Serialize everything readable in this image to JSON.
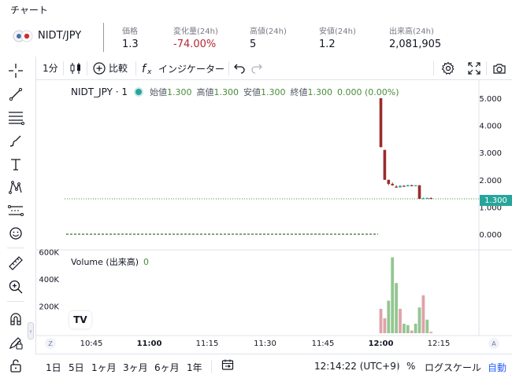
{
  "page_title": "チャート",
  "ticker": {
    "pair": "NIDT/JPY",
    "stats": [
      {
        "label": "価格",
        "value": "1.3",
        "negative": false
      },
      {
        "label": "変化量(24h)",
        "value": "-74.00%",
        "negative": true
      },
      {
        "label": "高値(24h)",
        "value": "5",
        "negative": false
      },
      {
        "label": "安値(24h)",
        "value": "1.2",
        "negative": false
      },
      {
        "label": "出来高(24h)",
        "value": "2,081,905",
        "negative": false
      }
    ]
  },
  "toolbar": {
    "interval": "1分",
    "compare": "比較",
    "indicators": "インジケーター"
  },
  "legend": {
    "symbol": "NIDT_JPY · 1",
    "open_label": "始値",
    "open": "1.300",
    "high_label": "高値",
    "high": "1.300",
    "low_label": "安値",
    "low": "1.300",
    "close_label": "終値",
    "close": "1.300",
    "change": "0.000 (0.00%)"
  },
  "volume_legend": {
    "label": "Volume (出来高)",
    "value": "0"
  },
  "last_price_tag": "1.300",
  "bottom_bar": {
    "ranges": [
      "1日",
      "5日",
      "1ヶ月",
      "3ヶ月",
      "6ヶ月",
      "1年"
    ],
    "clock": "12:14:22 (UTC+9)",
    "percent": "%",
    "log_scale": "ログスケール",
    "auto": "自動"
  },
  "axis_toggles": {
    "left": "Z",
    "right": "A"
  },
  "colors": {
    "up": "#26a69a",
    "down": "#9b2c2c",
    "accent": "#2962ff",
    "negative": "#b22833"
  },
  "chart_data": [
    {
      "type": "candlestick",
      "title": "NIDT_JPY · 1",
      "x_ticks": [
        "10:45",
        "11:00",
        "11:15",
        "11:30",
        "11:45",
        "12:00",
        "12:15"
      ],
      "y_ticks": [
        "5.000",
        "4.000",
        "3.000",
        "2.000",
        "1.000",
        "0.000"
      ],
      "ylim": [
        0,
        5
      ],
      "candles": [
        {
          "o": 5.0,
          "h": 5.0,
          "l": 3.2,
          "c": 3.2,
          "dir": "down"
        },
        {
          "o": 3.1,
          "h": 3.1,
          "l": 2.0,
          "c": 2.0,
          "dir": "down"
        },
        {
          "o": 2.0,
          "h": 2.0,
          "l": 1.8,
          "c": 1.85,
          "dir": "down"
        },
        {
          "o": 1.85,
          "h": 1.9,
          "l": 1.78,
          "c": 1.8,
          "dir": "down"
        },
        {
          "o": 1.75,
          "h": 1.8,
          "l": 1.7,
          "c": 1.72,
          "dir": "down"
        },
        {
          "o": 1.72,
          "h": 1.8,
          "l": 1.72,
          "c": 1.78,
          "dir": "up"
        },
        {
          "o": 1.78,
          "h": 1.8,
          "l": 1.74,
          "c": 1.76,
          "dir": "down"
        },
        {
          "o": 1.76,
          "h": 1.82,
          "l": 1.76,
          "c": 1.8,
          "dir": "up"
        },
        {
          "o": 1.8,
          "h": 1.82,
          "l": 1.78,
          "c": 1.79,
          "dir": "down"
        },
        {
          "o": 1.79,
          "h": 1.8,
          "l": 1.78,
          "c": 1.8,
          "dir": "up"
        },
        {
          "o": 1.8,
          "h": 1.8,
          "l": 1.3,
          "c": 1.3,
          "dir": "down"
        },
        {
          "o": 1.3,
          "h": 1.35,
          "l": 1.3,
          "c": 1.32,
          "dir": "up"
        },
        {
          "o": 1.32,
          "h": 1.35,
          "l": 1.3,
          "c": 1.33,
          "dir": "up"
        },
        {
          "o": 1.33,
          "h": 1.35,
          "l": 1.3,
          "c": 1.3,
          "dir": "down"
        }
      ],
      "last_price": 1.3,
      "dashed_level": 0.0
    },
    {
      "type": "bar",
      "title": "Volume (出来高)",
      "y_ticks": [
        "600K",
        "400K",
        "200K"
      ],
      "ylim": [
        0,
        620000
      ],
      "values": [
        {
          "v": 180000,
          "dir": "down"
        },
        {
          "v": 110000,
          "dir": "down"
        },
        {
          "v": 240000,
          "dir": "up"
        },
        {
          "v": 560000,
          "dir": "up"
        },
        {
          "v": 370000,
          "dir": "up"
        },
        {
          "v": 180000,
          "dir": "down"
        },
        {
          "v": 70000,
          "dir": "up"
        },
        {
          "v": 60000,
          "dir": "up"
        },
        {
          "v": 20000,
          "dir": "down"
        },
        {
          "v": 70000,
          "dir": "up"
        },
        {
          "v": 190000,
          "dir": "up"
        },
        {
          "v": 280000,
          "dir": "down"
        },
        {
          "v": 100000,
          "dir": "up"
        },
        {
          "v": 10000,
          "dir": "down"
        }
      ]
    }
  ]
}
